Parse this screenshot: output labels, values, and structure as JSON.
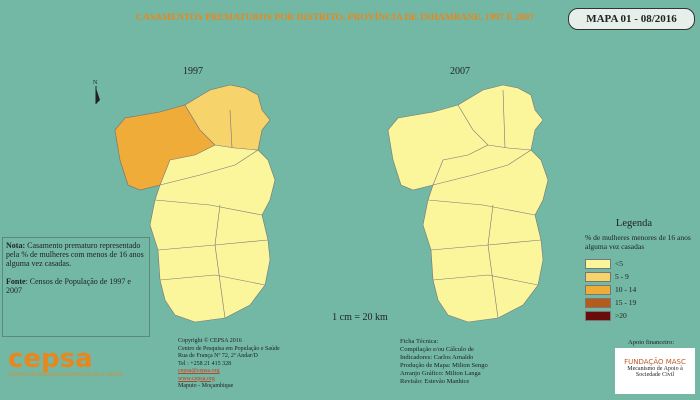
{
  "header": {
    "title": "CASAMENTOS PREMATUROS POR DISTRITO, PROVÍNCIA DE INHAMBANE, 1997 E 2007",
    "map_id": "MAPA 01 - 08/2016"
  },
  "maps": [
    {
      "label": "1997"
    },
    {
      "label": "2007"
    }
  ],
  "scale": "1 cm = 20 km",
  "legend": {
    "title": "Legenda",
    "subtitle": "% de mulheres menores de 16 anos alguma vez casadas",
    "items": [
      {
        "label": "<5",
        "color": "#fbf59c"
      },
      {
        "label": "5 - 9",
        "color": "#f7d36c"
      },
      {
        "label": "10 - 14",
        "color": "#f0ac38"
      },
      {
        "label": "15 - 19",
        "color": "#b45c1c"
      },
      {
        "label": ">20",
        "color": "#6a0c0c"
      }
    ]
  },
  "note": {
    "label": "Nota:",
    "text": "Casamento prematuro representado pela % de mulheres com menos de 16 anos alguma vez casadas.",
    "source_label": "Fonte",
    "source": ": Censos de População de 1997 e 2007"
  },
  "credits": [
    "Copyright © CEPSA 2016",
    "Centro de Pesquisa em População e Saúde",
    "Rua de França Nº 72, 2º Andar/D",
    "Tel : +258 21 415 328",
    "cepsa@cepsa.org",
    "www.cepsa.org",
    "Maputo - Moçambique"
  ],
  "technical": [
    "Ficha Técnica:",
    "Compilação e/ou Cálculo de",
    "Indicadores: Carlos Arnaldo",
    "Produção de Mapa: Milton Sengo",
    "Arranjo Gráfico: Milton Langa",
    "Revisão: Estevão Manhice"
  ],
  "sponsor": {
    "label": "Apoio financeiro:",
    "name": "FUNDAÇÃO MASC",
    "tagline": "Mecanismo de Apoio à Sociedade Civil"
  },
  "logo": {
    "name": "cepsa",
    "tagline": "CENTRO DE PESQUISA EM POPULAÇÃO E SAÚDE"
  },
  "north": "N"
}
